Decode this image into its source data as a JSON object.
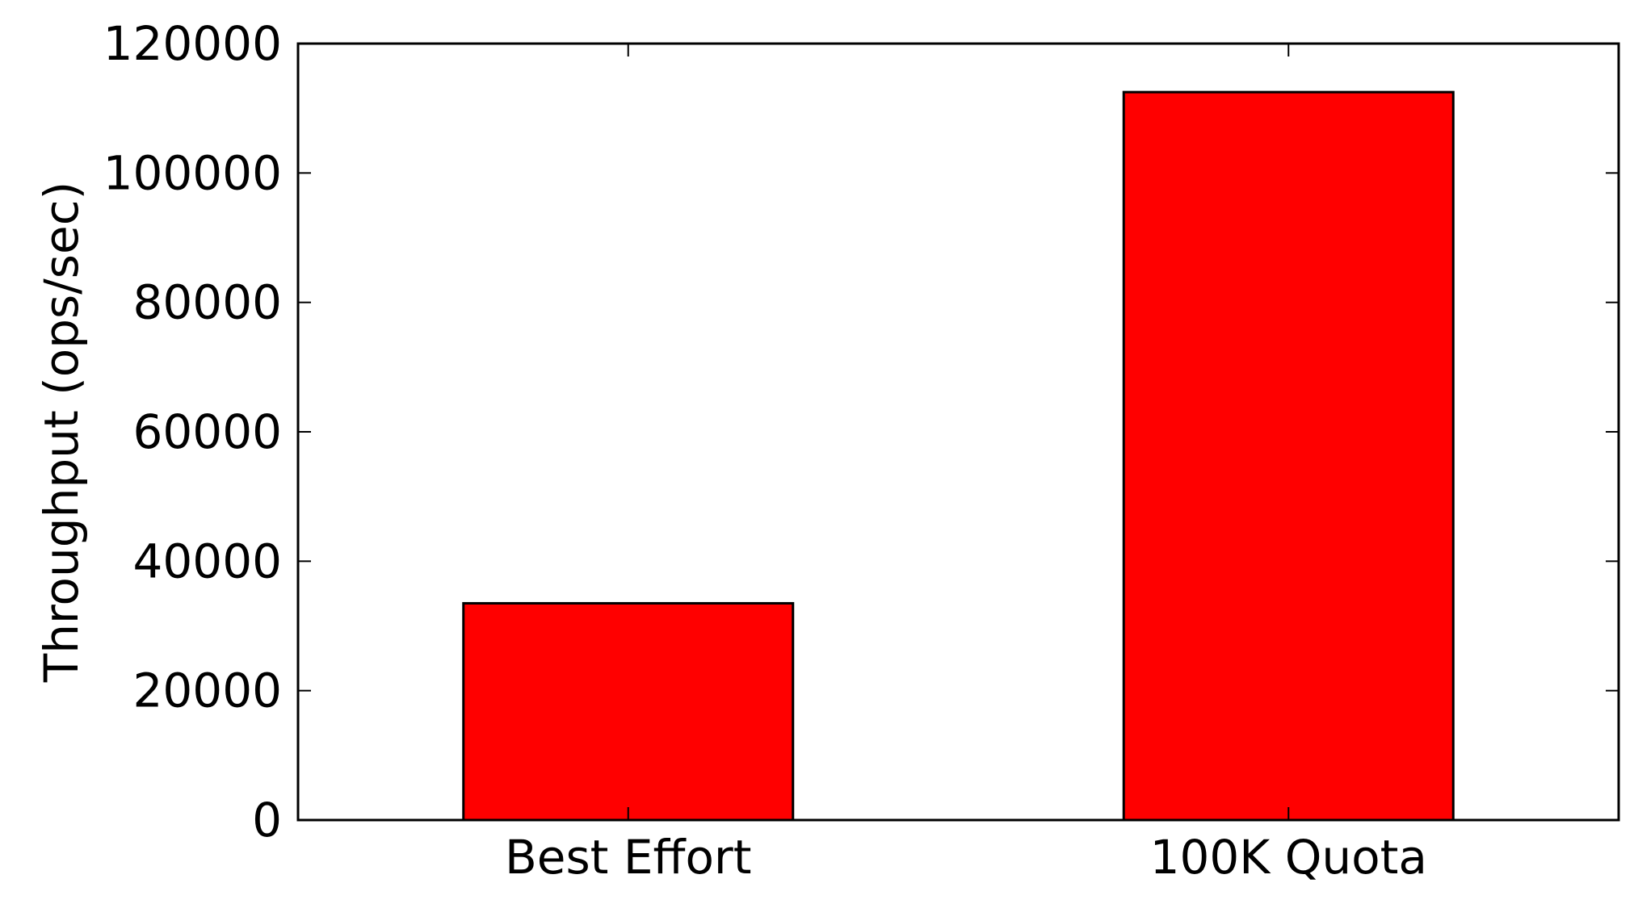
{
  "chart_data": {
    "type": "bar",
    "title": "",
    "xlabel": "",
    "ylabel": "Throughput (ops/sec)",
    "categories": [
      "Best Effort",
      "100K Quota"
    ],
    "values": [
      33500,
      112500
    ],
    "ylim": [
      0,
      120000
    ],
    "yticks": [
      0,
      20000,
      40000,
      60000,
      80000,
      100000,
      120000
    ],
    "ytick_labels": [
      "0",
      "20000",
      "40000",
      "60000",
      "80000",
      "100000",
      "120000"
    ],
    "grid": false,
    "legend": "none",
    "colors": {
      "bar_fill": "#ff0000",
      "bar_edge": "#000000",
      "axis": "#000000",
      "background": "#ffffff"
    }
  }
}
